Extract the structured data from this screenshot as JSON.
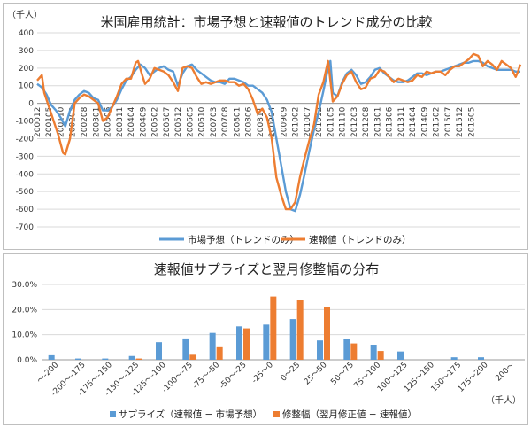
{
  "colors": {
    "blue": "#5b9bd5",
    "orange": "#ed7d31",
    "grid": "#d9d9d9",
    "axis": "#999999"
  },
  "chart_data": [
    {
      "type": "line",
      "title": "米国雇用統計：市場予想と速報値のトレンド成分の比較",
      "unit_label": "（千人）",
      "ylim": [
        -700,
        400
      ],
      "yticks": [
        400,
        300,
        200,
        100,
        0,
        -100,
        -200,
        -300,
        -400,
        -500,
        -600,
        -700
      ],
      "x_start": "2000-12",
      "x_end": "2016-07",
      "xticks": [
        "200012",
        "200105",
        "200110",
        "200203",
        "200208",
        "200301",
        "200306",
        "200311",
        "200404",
        "200409",
        "200502",
        "200507",
        "200512",
        "200605",
        "200610",
        "200703",
        "200708",
        "200801",
        "200806",
        "200811",
        "200904",
        "200909",
        "201002",
        "201007",
        "201012",
        "201105",
        "201110",
        "201203",
        "201208",
        "201301",
        "201306",
        "201311",
        "201404",
        "201409",
        "201502",
        "201507",
        "201512",
        "201605"
      ],
      "series": [
        {
          "name": "市場予想（トレンドのみ）",
          "color": "#5b9bd5",
          "points": [
            [
              0,
              110
            ],
            [
              2,
              90
            ],
            [
              4,
              50
            ],
            [
              6,
              -10
            ],
            [
              8,
              -40
            ],
            [
              10,
              -80
            ],
            [
              12,
              -130
            ],
            [
              14,
              -40
            ],
            [
              16,
              20
            ],
            [
              18,
              50
            ],
            [
              20,
              70
            ],
            [
              22,
              60
            ],
            [
              24,
              30
            ],
            [
              26,
              20
            ],
            [
              28,
              -40
            ],
            [
              30,
              -40
            ],
            [
              32,
              -20
            ],
            [
              34,
              20
            ],
            [
              36,
              80
            ],
            [
              38,
              130
            ],
            [
              40,
              150
            ],
            [
              42,
              190
            ],
            [
              44,
              220
            ],
            [
              46,
              200
            ],
            [
              48,
              160
            ],
            [
              50,
              180
            ],
            [
              52,
              200
            ],
            [
              54,
              210
            ],
            [
              56,
              190
            ],
            [
              58,
              180
            ],
            [
              60,
              100
            ],
            [
              62,
              170
            ],
            [
              64,
              210
            ],
            [
              66,
              220
            ],
            [
              68,
              190
            ],
            [
              70,
              170
            ],
            [
              72,
              150
            ],
            [
              74,
              130
            ],
            [
              76,
              120
            ],
            [
              78,
              120
            ],
            [
              80,
              110
            ],
            [
              82,
              140
            ],
            [
              84,
              140
            ],
            [
              86,
              130
            ],
            [
              88,
              120
            ],
            [
              90,
              100
            ],
            [
              92,
              100
            ],
            [
              94,
              80
            ],
            [
              96,
              60
            ],
            [
              98,
              20
            ],
            [
              100,
              -50
            ],
            [
              102,
              -200
            ],
            [
              104,
              -350
            ],
            [
              106,
              -500
            ],
            [
              108,
              -600
            ],
            [
              110,
              -610
            ],
            [
              112,
              -520
            ],
            [
              114,
              -400
            ],
            [
              116,
              -270
            ],
            [
              118,
              -150
            ],
            [
              120,
              -50
            ],
            [
              122,
              70
            ],
            [
              124,
              200
            ],
            [
              125,
              240
            ],
            [
              126,
              60
            ],
            [
              128,
              40
            ],
            [
              130,
              120
            ],
            [
              132,
              170
            ],
            [
              134,
              190
            ],
            [
              136,
              160
            ],
            [
              138,
              110
            ],
            [
              140,
              120
            ],
            [
              142,
              150
            ],
            [
              144,
              190
            ],
            [
              146,
              200
            ],
            [
              148,
              170
            ],
            [
              150,
              150
            ],
            [
              152,
              130
            ],
            [
              154,
              120
            ],
            [
              156,
              120
            ],
            [
              158,
              130
            ],
            [
              160,
              150
            ],
            [
              162,
              170
            ],
            [
              164,
              170
            ],
            [
              166,
              160
            ],
            [
              168,
              170
            ],
            [
              170,
              180
            ],
            [
              172,
              180
            ],
            [
              174,
              190
            ],
            [
              176,
              200
            ],
            [
              178,
              210
            ],
            [
              180,
              220
            ],
            [
              182,
              230
            ],
            [
              184,
              230
            ],
            [
              186,
              240
            ],
            [
              188,
              240
            ],
            [
              190,
              230
            ],
            [
              192,
              210
            ],
            [
              194,
              200
            ],
            [
              196,
              190
            ],
            [
              198,
              190
            ],
            [
              200,
              190
            ],
            [
              202,
              190
            ],
            [
              204,
              180
            ],
            [
              206,
              180
            ],
            [
              187,
              240
            ]
          ]
        },
        {
          "name": "速報値（トレンドのみ）",
          "color": "#ed7d31",
          "points": [
            [
              0,
              130
            ],
            [
              2,
              160
            ],
            [
              3,
              60
            ],
            [
              5,
              -20
            ],
            [
              7,
              -100
            ],
            [
              9,
              -180
            ],
            [
              11,
              -280
            ],
            [
              12,
              -290
            ],
            [
              14,
              -200
            ],
            [
              16,
              0
            ],
            [
              18,
              30
            ],
            [
              20,
              50
            ],
            [
              22,
              40
            ],
            [
              24,
              20
            ],
            [
              26,
              0
            ],
            [
              28,
              -100
            ],
            [
              30,
              -80
            ],
            [
              32,
              -20
            ],
            [
              34,
              40
            ],
            [
              36,
              110
            ],
            [
              38,
              140
            ],
            [
              40,
              140
            ],
            [
              42,
              230
            ],
            [
              43,
              240
            ],
            [
              45,
              150
            ],
            [
              46,
              110
            ],
            [
              48,
              140
            ],
            [
              50,
              200
            ],
            [
              52,
              190
            ],
            [
              54,
              180
            ],
            [
              56,
              160
            ],
            [
              58,
              120
            ],
            [
              60,
              70
            ],
            [
              62,
              200
            ],
            [
              64,
              210
            ],
            [
              66,
              200
            ],
            [
              68,
              150
            ],
            [
              70,
              110
            ],
            [
              72,
              120
            ],
            [
              74,
              110
            ],
            [
              76,
              120
            ],
            [
              78,
              130
            ],
            [
              80,
              130
            ],
            [
              82,
              120
            ],
            [
              84,
              120
            ],
            [
              86,
              100
            ],
            [
              88,
              110
            ],
            [
              90,
              80
            ],
            [
              92,
              20
            ],
            [
              94,
              -60
            ],
            [
              96,
              -30
            ],
            [
              98,
              -80
            ],
            [
              100,
              -200
            ],
            [
              102,
              -420
            ],
            [
              104,
              -520
            ],
            [
              106,
              -600
            ],
            [
              108,
              -600
            ],
            [
              110,
              -560
            ],
            [
              112,
              -420
            ],
            [
              114,
              -310
            ],
            [
              116,
              -210
            ],
            [
              118,
              -120
            ],
            [
              120,
              50
            ],
            [
              122,
              120
            ],
            [
              124,
              240
            ],
            [
              125,
              130
            ],
            [
              126,
              10
            ],
            [
              128,
              40
            ],
            [
              130,
              110
            ],
            [
              132,
              160
            ],
            [
              134,
              180
            ],
            [
              136,
              120
            ],
            [
              138,
              80
            ],
            [
              140,
              90
            ],
            [
              142,
              140
            ],
            [
              144,
              150
            ],
            [
              146,
              190
            ],
            [
              148,
              180
            ],
            [
              150,
              150
            ],
            [
              152,
              120
            ],
            [
              154,
              140
            ],
            [
              156,
              130
            ],
            [
              158,
              120
            ],
            [
              160,
              130
            ],
            [
              162,
              160
            ],
            [
              164,
              150
            ],
            [
              166,
              180
            ],
            [
              168,
              170
            ],
            [
              170,
              180
            ],
            [
              172,
              180
            ],
            [
              174,
              160
            ],
            [
              176,
              190
            ],
            [
              178,
              210
            ],
            [
              180,
              210
            ],
            [
              182,
              230
            ],
            [
              184,
              250
            ],
            [
              186,
              280
            ],
            [
              188,
              270
            ],
            [
              190,
              210
            ],
            [
              192,
              240
            ],
            [
              194,
              220
            ],
            [
              196,
              190
            ],
            [
              198,
              240
            ],
            [
              200,
              220
            ],
            [
              202,
              200
            ],
            [
              204,
              150
            ],
            [
              205,
              180
            ],
            [
              206,
              220
            ]
          ]
        }
      ]
    },
    {
      "type": "bar",
      "title": "速報値サプライズと翌月修整幅の分布",
      "unit_label": "（千人）",
      "ylim": [
        0,
        30
      ],
      "yticks": [
        "0.0%",
        "10.0%",
        "20.0%",
        "30.0%"
      ],
      "ytick_values": [
        0,
        10,
        20,
        30
      ],
      "categories": [
        "～-200",
        "-200～-175",
        "-175～-150",
        "-150～-125",
        "-125～-100",
        "-100～-75",
        "-75～-50",
        "-50～-25",
        "-25～0",
        "0～25",
        "25～50",
        "50～75",
        "75～100",
        "100～125",
        "125～150",
        "150～175",
        "175～200",
        "200～"
      ],
      "series": [
        {
          "name": "サプライズ（速報値 − 市場予想）",
          "color": "#5b9bd5",
          "values": [
            1.8,
            0.5,
            0.5,
            1.5,
            7.0,
            8.5,
            10.7,
            13.3,
            14.0,
            16.2,
            7.7,
            8.2,
            6.0,
            3.3,
            0,
            1.0,
            1.0,
            0
          ]
        },
        {
          "name": "修整幅（翌月修正値 − 速報値）",
          "color": "#ed7d31",
          "values": [
            0,
            0,
            0,
            0.5,
            0,
            2.0,
            5.0,
            12.5,
            25.2,
            24.0,
            21.0,
            6.5,
            3.5,
            0,
            0,
            0,
            0,
            0
          ]
        }
      ]
    }
  ]
}
